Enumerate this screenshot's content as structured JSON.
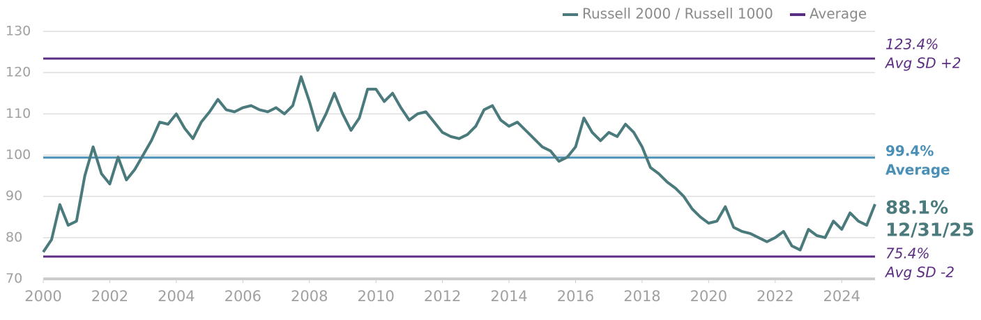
{
  "chart_data": {
    "type": "line",
    "x": [
      2000,
      2000.25,
      2000.5,
      2000.75,
      2001,
      2001.25,
      2001.5,
      2001.75,
      2002,
      2002.25,
      2002.5,
      2002.75,
      2003,
      2003.25,
      2003.5,
      2003.75,
      2004,
      2004.25,
      2004.5,
      2004.75,
      2005,
      2005.25,
      2005.5,
      2005.75,
      2006,
      2006.25,
      2006.5,
      2006.75,
      2007,
      2007.25,
      2007.5,
      2007.75,
      2008,
      2008.25,
      2008.5,
      2008.75,
      2009,
      2009.25,
      2009.5,
      2009.75,
      2010,
      2010.25,
      2010.5,
      2010.75,
      2011,
      2011.25,
      2011.5,
      2011.75,
      2012,
      2012.25,
      2012.5,
      2012.75,
      2013,
      2013.25,
      2013.5,
      2013.75,
      2014,
      2014.25,
      2014.5,
      2014.75,
      2015,
      2015.25,
      2015.5,
      2015.75,
      2016,
      2016.25,
      2016.5,
      2016.75,
      2017,
      2017.25,
      2017.5,
      2017.75,
      2018,
      2018.25,
      2018.5,
      2018.75,
      2019,
      2019.25,
      2019.5,
      2019.75,
      2020,
      2020.25,
      2020.5,
      2020.75,
      2021,
      2021.25,
      2021.5,
      2021.75,
      2022,
      2022.25,
      2022.5,
      2022.75,
      2023,
      2023.25,
      2023.5,
      2023.75,
      2024,
      2024.25,
      2024.5,
      2024.75,
      2025
    ],
    "series": [
      {
        "name": "Russell 2000 / Russell 1000",
        "color": "#4a7a7c",
        "values": [
          76.5,
          79.5,
          88,
          83,
          84,
          95,
          102,
          95.5,
          93,
          99.5,
          94,
          96.5,
          100,
          103.5,
          108,
          107.5,
          110,
          106.5,
          104,
          108,
          110.5,
          113.5,
          111,
          110.5,
          111.5,
          112,
          111,
          110.5,
          111.5,
          110,
          112,
          119,
          113,
          106,
          110,
          115,
          110,
          106,
          109,
          116,
          116,
          113,
          115,
          111.5,
          108.5,
          110,
          110.5,
          108,
          105.5,
          104.5,
          104,
          105,
          107,
          111,
          112,
          108.5,
          107,
          108,
          106,
          104,
          102,
          101,
          98.5,
          99.5,
          102,
          109,
          105.5,
          103.5,
          105.5,
          104.5,
          107.5,
          105.5,
          102,
          97,
          95.5,
          93.5,
          92,
          90,
          87,
          85,
          83.5,
          84,
          87.5,
          82.5,
          81.5,
          81,
          80,
          79,
          80,
          81.5,
          78,
          77,
          82,
          80.5,
          80,
          84,
          82,
          86,
          84,
          83,
          88.1
        ]
      }
    ],
    "average_legend": {
      "name": "Average",
      "color": "#5b2d82"
    },
    "reference_lines": [
      {
        "value": 123.4,
        "label": "123.4%",
        "note": "Avg SD +2",
        "color": "#5b2d82"
      },
      {
        "value": 99.4,
        "label": "99.4%",
        "note": "Average",
        "color": "#4a8fb5"
      },
      {
        "value": 75.4,
        "label": "75.4%",
        "note": "Avg SD -2",
        "color": "#5b2d82"
      }
    ],
    "end_label": {
      "value": 88.1,
      "label": "88.1%",
      "date": "12/31/25"
    },
    "xlim": [
      2000,
      2025
    ],
    "xticks": [
      2000,
      2002,
      2004,
      2006,
      2008,
      2010,
      2012,
      2014,
      2016,
      2018,
      2020,
      2022,
      2024
    ],
    "ylim": [
      70,
      130
    ],
    "yticks": [
      70,
      80,
      90,
      100,
      110,
      120,
      130
    ],
    "grid": true
  }
}
